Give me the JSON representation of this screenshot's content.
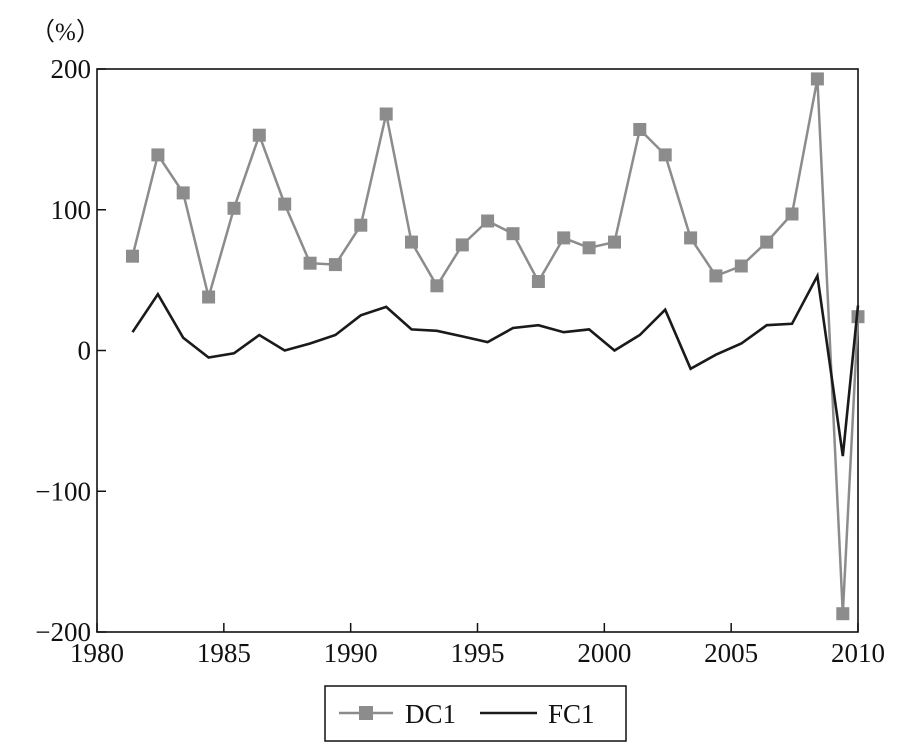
{
  "chart_data": {
    "type": "line",
    "unit_label": "（%）",
    "xlim": [
      1980,
      2010
    ],
    "ylim": [
      -200,
      200
    ],
    "xticks": [
      1980,
      1985,
      1990,
      1995,
      2000,
      2005,
      2010
    ],
    "yticks": [
      200,
      100,
      0,
      -100,
      -200
    ],
    "ytick_labels": [
      "200",
      "100",
      "0",
      "−100",
      "−200"
    ],
    "grid": false,
    "legend_position": "bottom-center",
    "series": [
      {
        "name": "DC1",
        "color": "#8c8c8c",
        "marker": "square",
        "points": [
          [
            1981.4,
            67
          ],
          [
            1982.4,
            139
          ],
          [
            1983.4,
            112
          ],
          [
            1984.4,
            38
          ],
          [
            1985.4,
            101
          ],
          [
            1986.4,
            153
          ],
          [
            1987.4,
            104
          ],
          [
            1988.4,
            62
          ],
          [
            1989.4,
            61
          ],
          [
            1990.4,
            89
          ],
          [
            1991.4,
            168
          ],
          [
            1992.4,
            77
          ],
          [
            1993.4,
            46
          ],
          [
            1994.4,
            75
          ],
          [
            1995.4,
            92
          ],
          [
            1996.4,
            83
          ],
          [
            1997.4,
            49
          ],
          [
            1998.4,
            80
          ],
          [
            1999.4,
            73
          ],
          [
            2000.4,
            77
          ],
          [
            2001.4,
            157
          ],
          [
            2002.4,
            139
          ],
          [
            2003.4,
            80
          ],
          [
            2004.4,
            53
          ],
          [
            2005.4,
            60
          ],
          [
            2006.4,
            77
          ],
          [
            2007.4,
            97
          ],
          [
            2008.4,
            193
          ],
          [
            2009.4,
            -187
          ],
          [
            2010.4,
            24
          ]
        ]
      },
      {
        "name": "FC1",
        "color": "#1a1a1a",
        "marker": "none",
        "points": [
          [
            1981.4,
            13
          ],
          [
            1982.4,
            40
          ],
          [
            1983.4,
            9
          ],
          [
            1984.4,
            -5
          ],
          [
            1985.4,
            -2
          ],
          [
            1986.4,
            11
          ],
          [
            1987.4,
            0
          ],
          [
            1988.4,
            5
          ],
          [
            1989.4,
            11
          ],
          [
            1990.4,
            25
          ],
          [
            1991.4,
            31
          ],
          [
            1992.4,
            15
          ],
          [
            1993.4,
            14
          ],
          [
            1994.4,
            10
          ],
          [
            1995.4,
            6
          ],
          [
            1996.4,
            16
          ],
          [
            1997.4,
            18
          ],
          [
            1998.4,
            13
          ],
          [
            1999.4,
            15
          ],
          [
            2000.4,
            0
          ],
          [
            2001.4,
            11
          ],
          [
            2002.4,
            29
          ],
          [
            2003.4,
            -13
          ],
          [
            2004.4,
            -3
          ],
          [
            2005.4,
            5
          ],
          [
            2006.4,
            18
          ],
          [
            2007.4,
            19
          ],
          [
            2008.4,
            53
          ],
          [
            2009.4,
            -75
          ],
          [
            2010.4,
            32
          ]
        ]
      }
    ]
  }
}
